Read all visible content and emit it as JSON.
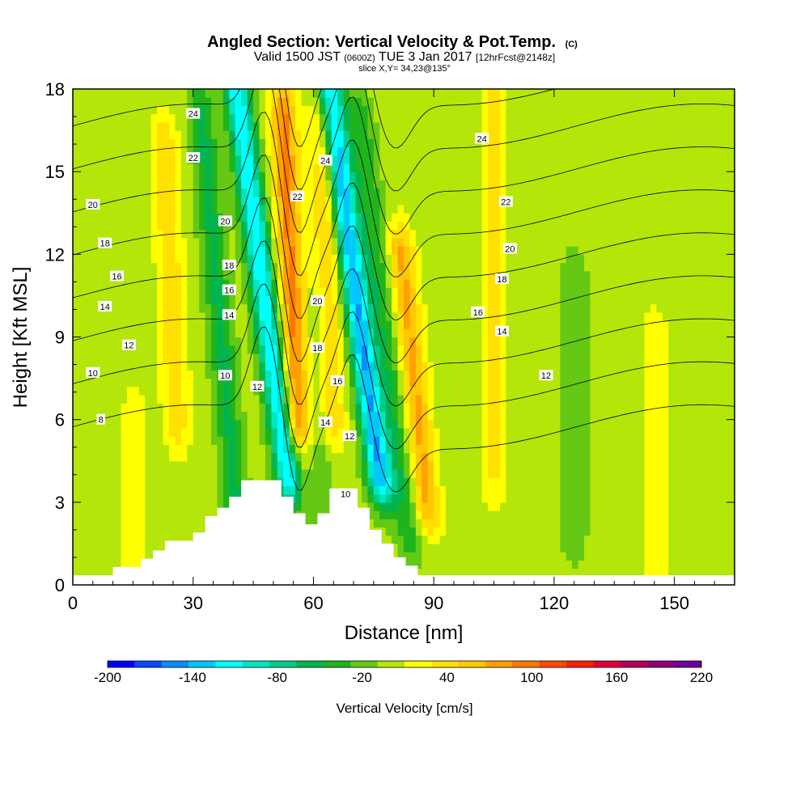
{
  "chart_data": {
    "type": "heatmap",
    "title": {
      "main": "Angled Section: Vertical Velocity & Pot.Temp.",
      "unit": "(C)",
      "valid_prefix": "Valid 1500 JST",
      "valid_utc": "(0600Z)",
      "valid_date": "TUE 3 Jan 2017",
      "forecast": "[12hrFcst@2148z]",
      "slice": "slice X,Y= 34,23@135°"
    },
    "xlabel": "Distance [nm]",
    "ylabel": "Height [Kft MSL]",
    "xlim": [
      0,
      165
    ],
    "ylim": [
      0,
      18
    ],
    "x_ticks": [
      0,
      30,
      60,
      90,
      120,
      150
    ],
    "y_ticks": [
      0,
      3,
      6,
      9,
      12,
      15,
      18
    ],
    "colorbar": {
      "label": "Vertical Velocity [cm/s]",
      "tick_labels": [
        "-200",
        "-140",
        "-80",
        "-20",
        "40",
        "100",
        "160",
        "220"
      ],
      "tick_values": [
        -200,
        -140,
        -80,
        -20,
        40,
        100,
        160,
        220
      ],
      "bounds": [
        -200,
        -180,
        -160,
        -140,
        -120,
        -100,
        -80,
        -60,
        -40,
        -20,
        0,
        20,
        40,
        60,
        80,
        100,
        120,
        140,
        160,
        180,
        200,
        220
      ],
      "colors": [
        "#0000ff",
        "#0a46ff",
        "#0a8cff",
        "#00c8ff",
        "#00ffff",
        "#00e6c4",
        "#00cc88",
        "#00b450",
        "#1eb41e",
        "#64c814",
        "#b4e60a",
        "#ffff00",
        "#ffe000",
        "#ffc800",
        "#ffa000",
        "#ff7800",
        "#ff4800",
        "#ff1e00",
        "#e1003c",
        "#b4005a",
        "#8c0078",
        "#6e0096"
      ]
    },
    "velocity_field": {
      "base_value": 10,
      "features": [
        {
          "x": 37,
          "y_range": [
            3,
            17
          ],
          "value": -55,
          "tilt": -0.6
        },
        {
          "x": 49,
          "y_range": [
            4,
            18
          ],
          "value": -130,
          "tilt": -0.9
        },
        {
          "x": 55,
          "y_range": [
            6,
            17
          ],
          "value": 95,
          "tilt": -0.3
        },
        {
          "x": 62,
          "y_range": [
            3,
            10
          ],
          "value": -25,
          "tilt": 0
        },
        {
          "x": 64,
          "y_range": [
            6,
            17
          ],
          "value": 55,
          "tilt": -0.2
        },
        {
          "x": 72,
          "y_range": [
            4,
            18
          ],
          "value": -150,
          "tilt": -0.9
        },
        {
          "x": 78,
          "y_range": [
            2,
            17
          ],
          "value": -45,
          "tilt": -0.8
        },
        {
          "x": 84,
          "y_range": [
            3,
            12
          ],
          "value": 75,
          "tilt": -0.7
        },
        {
          "x": 25,
          "y_range": [
            6,
            16
          ],
          "value": 45,
          "tilt": -0.3
        },
        {
          "x": 105,
          "y_range": [
            4,
            18
          ],
          "value": 32,
          "tilt": 0
        },
        {
          "x": 125,
          "y_range": [
            2,
            11
          ],
          "value": -30,
          "tilt": 0
        },
        {
          "x": 8,
          "y_range": [
            7,
            17
          ],
          "value": -5,
          "tilt": 0
        },
        {
          "x": 15,
          "y_range": [
            0,
            6
          ],
          "value": 25,
          "tilt": 0
        },
        {
          "x": 145,
          "y_range": [
            0,
            9
          ],
          "value": 25,
          "tilt": 0
        }
      ]
    },
    "theta_contours": [
      {
        "level": 8,
        "label": "8",
        "label_at": [
          7,
          6.0
        ]
      },
      {
        "level": 10,
        "label": "10",
        "label_at": [
          5,
          7.7
        ]
      },
      {
        "level": 12,
        "label": "12",
        "label_at": [
          14,
          8.7
        ]
      },
      {
        "level": 14,
        "label": "14",
        "label_at": [
          8,
          10.1
        ]
      },
      {
        "level": 16,
        "label": "16",
        "label_at": [
          11,
          11.2
        ]
      },
      {
        "level": 18,
        "label": "18",
        "label_at": [
          8,
          12.4
        ]
      },
      {
        "level": 20,
        "label": "20",
        "label_at": [
          5,
          13.8
        ]
      },
      {
        "level": 22,
        "label": "22",
        "label_at": [
          30,
          15.5
        ]
      },
      {
        "level": 24,
        "label": "24",
        "label_at": [
          30,
          17.1
        ]
      }
    ],
    "extra_contour_labels": [
      {
        "text": "20",
        "at": [
          38,
          13.2
        ]
      },
      {
        "text": "18",
        "at": [
          39,
          11.6
        ]
      },
      {
        "text": "16",
        "at": [
          39,
          10.7
        ]
      },
      {
        "text": "14",
        "at": [
          39,
          9.8
        ]
      },
      {
        "text": "10",
        "at": [
          38,
          7.6
        ]
      },
      {
        "text": "12",
        "at": [
          46,
          7.2
        ]
      },
      {
        "text": "22",
        "at": [
          56,
          14.1
        ]
      },
      {
        "text": "24",
        "at": [
          63,
          15.4
        ]
      },
      {
        "text": "20",
        "at": [
          61,
          10.3
        ]
      },
      {
        "text": "18",
        "at": [
          61,
          8.6
        ]
      },
      {
        "text": "16",
        "at": [
          66,
          7.4
        ]
      },
      {
        "text": "14",
        "at": [
          63,
          5.9
        ]
      },
      {
        "text": "12",
        "at": [
          69,
          5.4
        ]
      },
      {
        "text": "10",
        "at": [
          68,
          3.3
        ]
      },
      {
        "text": "24",
        "at": [
          102,
          16.2
        ]
      },
      {
        "text": "22",
        "at": [
          108,
          13.9
        ]
      },
      {
        "text": "20",
        "at": [
          109,
          12.2
        ]
      },
      {
        "text": "18",
        "at": [
          107,
          11.1
        ]
      },
      {
        "text": "16",
        "at": [
          101,
          9.9
        ]
      },
      {
        "text": "14",
        "at": [
          107,
          9.2
        ]
      },
      {
        "text": "12",
        "at": [
          118,
          7.6
        ]
      }
    ],
    "terrain": [
      [
        0,
        0.35
      ],
      [
        10,
        0.35
      ],
      [
        10,
        0.65
      ],
      [
        17,
        0.65
      ],
      [
        17,
        0.95
      ],
      [
        20,
        0.95
      ],
      [
        20,
        1.25
      ],
      [
        23,
        1.25
      ],
      [
        23,
        1.6
      ],
      [
        30,
        1.6
      ],
      [
        30,
        1.9
      ],
      [
        33,
        1.9
      ],
      [
        33,
        2.5
      ],
      [
        36,
        2.5
      ],
      [
        36,
        2.8
      ],
      [
        39,
        2.8
      ],
      [
        39,
        3.2
      ],
      [
        42,
        3.2
      ],
      [
        42,
        3.8
      ],
      [
        52,
        3.8
      ],
      [
        52,
        3.2
      ],
      [
        55,
        3.2
      ],
      [
        55,
        2.6
      ],
      [
        58,
        2.6
      ],
      [
        58,
        2.2
      ],
      [
        61,
        2.2
      ],
      [
        61,
        2.6
      ],
      [
        64,
        2.6
      ],
      [
        64,
        3.5
      ],
      [
        71,
        3.5
      ],
      [
        71,
        2.8
      ],
      [
        74,
        2.8
      ],
      [
        74,
        2.0
      ],
      [
        77,
        2.0
      ],
      [
        77,
        1.5
      ],
      [
        80,
        1.5
      ],
      [
        80,
        1.0
      ],
      [
        83,
        1.0
      ],
      [
        83,
        0.7
      ],
      [
        86,
        0.7
      ],
      [
        86,
        0.35
      ],
      [
        165,
        0.35
      ]
    ]
  }
}
